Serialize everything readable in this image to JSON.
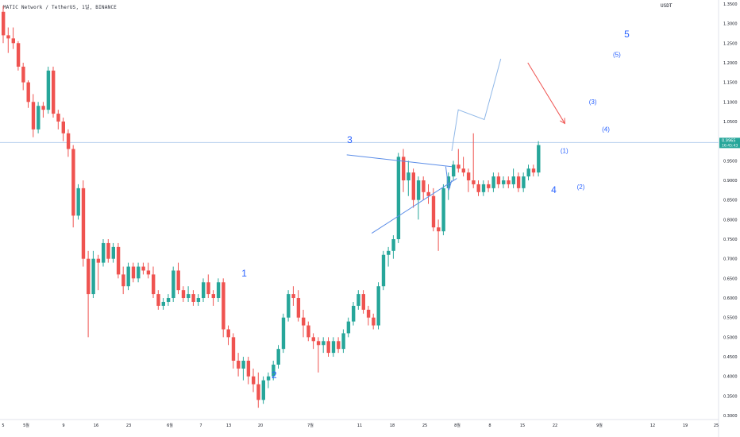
{
  "header": {
    "symbol": "MATIC Network / TetherUS, 1일, BINANCE",
    "currency": "USDT"
  },
  "colors": {
    "up": "#26a69a",
    "down": "#ef5350",
    "wave_line": "#5b8de8",
    "wave_text": "#2962ff",
    "projection_line": "#90b8e8",
    "arrow": "#ef5350",
    "price_tag": "#26a69a",
    "price_line": "#b7d0ee"
  },
  "chart_data": {
    "type": "candlestick",
    "y_axis_ticks": [
      "1.3500",
      "1.3000",
      "1.2500",
      "1.2000",
      "1.1500",
      "1.1000",
      "1.0500",
      "1.0000",
      "0.9500",
      "0.9000",
      "0.8500",
      "0.8000",
      "0.7500",
      "0.7000",
      "0.6500",
      "0.6000",
      "0.5500",
      "0.5000",
      "0.4500",
      "0.4000",
      "0.3500",
      "0.3000"
    ],
    "ylim": [
      0.29,
      1.36
    ],
    "x_axis_ticks": [
      "5",
      "5월",
      "9",
      "16",
      "23",
      "6월",
      "7",
      "13",
      "20",
      "7월",
      "11",
      "18",
      "25",
      "8월",
      "8",
      "15",
      "22",
      "9월",
      "12",
      "19",
      "25"
    ],
    "current_price": {
      "value": "0.9965",
      "countdown": "16:45:43"
    },
    "ohlc": [
      {
        "o": 1.33,
        "h": 1.345,
        "l": 1.25,
        "c": 1.27
      },
      {
        "o": 1.27,
        "h": 1.29,
        "l": 1.225,
        "c": 1.262
      },
      {
        "o": 1.262,
        "h": 1.29,
        "l": 1.235,
        "c": 1.25
      },
      {
        "o": 1.25,
        "h": 1.255,
        "l": 1.18,
        "c": 1.19
      },
      {
        "o": 1.19,
        "h": 1.2,
        "l": 1.13,
        "c": 1.15
      },
      {
        "o": 1.15,
        "h": 1.155,
        "l": 1.085,
        "c": 1.1
      },
      {
        "o": 1.1,
        "h": 1.12,
        "l": 1.01,
        "c": 1.03
      },
      {
        "o": 1.03,
        "h": 1.1,
        "l": 1.02,
        "c": 1.09
      },
      {
        "o": 1.09,
        "h": 1.1,
        "l": 1.06,
        "c": 1.08
      },
      {
        "o": 1.08,
        "h": 1.19,
        "l": 1.07,
        "c": 1.18
      },
      {
        "o": 1.18,
        "h": 1.19,
        "l": 1.06,
        "c": 1.07
      },
      {
        "o": 1.07,
        "h": 1.08,
        "l": 1.03,
        "c": 1.05
      },
      {
        "o": 1.05,
        "h": 1.06,
        "l": 1.0,
        "c": 1.02
      },
      {
        "o": 1.02,
        "h": 1.03,
        "l": 0.96,
        "c": 0.98
      },
      {
        "o": 0.98,
        "h": 0.99,
        "l": 0.78,
        "c": 0.81
      },
      {
        "o": 0.81,
        "h": 0.89,
        "l": 0.8,
        "c": 0.88
      },
      {
        "o": 0.88,
        "h": 0.9,
        "l": 0.68,
        "c": 0.7
      },
      {
        "o": 0.7,
        "h": 0.72,
        "l": 0.5,
        "c": 0.61
      },
      {
        "o": 0.61,
        "h": 0.72,
        "l": 0.6,
        "c": 0.7
      },
      {
        "o": 0.7,
        "h": 0.71,
        "l": 0.62,
        "c": 0.69
      },
      {
        "o": 0.69,
        "h": 0.75,
        "l": 0.68,
        "c": 0.74
      },
      {
        "o": 0.74,
        "h": 0.75,
        "l": 0.69,
        "c": 0.7
      },
      {
        "o": 0.7,
        "h": 0.74,
        "l": 0.69,
        "c": 0.73
      },
      {
        "o": 0.73,
        "h": 0.74,
        "l": 0.65,
        "c": 0.66
      },
      {
        "o": 0.66,
        "h": 0.68,
        "l": 0.61,
        "c": 0.63
      },
      {
        "o": 0.63,
        "h": 0.69,
        "l": 0.62,
        "c": 0.68
      },
      {
        "o": 0.68,
        "h": 0.69,
        "l": 0.64,
        "c": 0.65
      },
      {
        "o": 0.65,
        "h": 0.69,
        "l": 0.64,
        "c": 0.68
      },
      {
        "o": 0.68,
        "h": 0.69,
        "l": 0.66,
        "c": 0.67
      },
      {
        "o": 0.67,
        "h": 0.69,
        "l": 0.65,
        "c": 0.66
      },
      {
        "o": 0.66,
        "h": 0.68,
        "l": 0.6,
        "c": 0.61
      },
      {
        "o": 0.61,
        "h": 0.62,
        "l": 0.57,
        "c": 0.58
      },
      {
        "o": 0.58,
        "h": 0.6,
        "l": 0.57,
        "c": 0.59
      },
      {
        "o": 0.59,
        "h": 0.61,
        "l": 0.58,
        "c": 0.6
      },
      {
        "o": 0.6,
        "h": 0.68,
        "l": 0.59,
        "c": 0.67
      },
      {
        "o": 0.67,
        "h": 0.69,
        "l": 0.61,
        "c": 0.62
      },
      {
        "o": 0.62,
        "h": 0.63,
        "l": 0.59,
        "c": 0.6
      },
      {
        "o": 0.6,
        "h": 0.63,
        "l": 0.59,
        "c": 0.61
      },
      {
        "o": 0.61,
        "h": 0.62,
        "l": 0.58,
        "c": 0.59
      },
      {
        "o": 0.59,
        "h": 0.61,
        "l": 0.58,
        "c": 0.6
      },
      {
        "o": 0.6,
        "h": 0.65,
        "l": 0.59,
        "c": 0.64
      },
      {
        "o": 0.64,
        "h": 0.66,
        "l": 0.6,
        "c": 0.61
      },
      {
        "o": 0.61,
        "h": 0.62,
        "l": 0.58,
        "c": 0.6
      },
      {
        "o": 0.6,
        "h": 0.65,
        "l": 0.59,
        "c": 0.64
      },
      {
        "o": 0.64,
        "h": 0.65,
        "l": 0.5,
        "c": 0.52
      },
      {
        "o": 0.52,
        "h": 0.53,
        "l": 0.48,
        "c": 0.5
      },
      {
        "o": 0.5,
        "h": 0.51,
        "l": 0.42,
        "c": 0.44
      },
      {
        "o": 0.44,
        "h": 0.46,
        "l": 0.4,
        "c": 0.42
      },
      {
        "o": 0.42,
        "h": 0.45,
        "l": 0.39,
        "c": 0.44
      },
      {
        "o": 0.44,
        "h": 0.45,
        "l": 0.38,
        "c": 0.4
      },
      {
        "o": 0.4,
        "h": 0.42,
        "l": 0.36,
        "c": 0.38
      },
      {
        "o": 0.38,
        "h": 0.41,
        "l": 0.32,
        "c": 0.34
      },
      {
        "o": 0.34,
        "h": 0.4,
        "l": 0.33,
        "c": 0.39
      },
      {
        "o": 0.39,
        "h": 0.41,
        "l": 0.37,
        "c": 0.4
      },
      {
        "o": 0.4,
        "h": 0.44,
        "l": 0.39,
        "c": 0.43
      },
      {
        "o": 0.43,
        "h": 0.48,
        "l": 0.42,
        "c": 0.47
      },
      {
        "o": 0.47,
        "h": 0.56,
        "l": 0.46,
        "c": 0.55
      },
      {
        "o": 0.55,
        "h": 0.62,
        "l": 0.54,
        "c": 0.61
      },
      {
        "o": 0.61,
        "h": 0.63,
        "l": 0.58,
        "c": 0.6
      },
      {
        "o": 0.6,
        "h": 0.62,
        "l": 0.54,
        "c": 0.55
      },
      {
        "o": 0.55,
        "h": 0.57,
        "l": 0.5,
        "c": 0.53
      },
      {
        "o": 0.53,
        "h": 0.54,
        "l": 0.49,
        "c": 0.5
      },
      {
        "o": 0.5,
        "h": 0.51,
        "l": 0.47,
        "c": 0.49
      },
      {
        "o": 0.49,
        "h": 0.5,
        "l": 0.41,
        "c": 0.48
      },
      {
        "o": 0.48,
        "h": 0.5,
        "l": 0.46,
        "c": 0.49
      },
      {
        "o": 0.49,
        "h": 0.5,
        "l": 0.45,
        "c": 0.46
      },
      {
        "o": 0.46,
        "h": 0.5,
        "l": 0.45,
        "c": 0.49
      },
      {
        "o": 0.49,
        "h": 0.5,
        "l": 0.46,
        "c": 0.47
      },
      {
        "o": 0.47,
        "h": 0.52,
        "l": 0.46,
        "c": 0.51
      },
      {
        "o": 0.51,
        "h": 0.55,
        "l": 0.5,
        "c": 0.54
      },
      {
        "o": 0.54,
        "h": 0.59,
        "l": 0.53,
        "c": 0.58
      },
      {
        "o": 0.58,
        "h": 0.62,
        "l": 0.57,
        "c": 0.61
      },
      {
        "o": 0.61,
        "h": 0.62,
        "l": 0.56,
        "c": 0.57
      },
      {
        "o": 0.57,
        "h": 0.58,
        "l": 0.53,
        "c": 0.55
      },
      {
        "o": 0.55,
        "h": 0.56,
        "l": 0.52,
        "c": 0.53
      },
      {
        "o": 0.53,
        "h": 0.64,
        "l": 0.52,
        "c": 0.63
      },
      {
        "o": 0.63,
        "h": 0.72,
        "l": 0.62,
        "c": 0.71
      },
      {
        "o": 0.71,
        "h": 0.73,
        "l": 0.68,
        "c": 0.72
      },
      {
        "o": 0.72,
        "h": 0.76,
        "l": 0.7,
        "c": 0.75
      },
      {
        "o": 0.75,
        "h": 0.97,
        "l": 0.74,
        "c": 0.96
      },
      {
        "o": 0.96,
        "h": 0.98,
        "l": 0.87,
        "c": 0.9
      },
      {
        "o": 0.9,
        "h": 0.95,
        "l": 0.86,
        "c": 0.92
      },
      {
        "o": 0.92,
        "h": 0.93,
        "l": 0.83,
        "c": 0.85
      },
      {
        "o": 0.85,
        "h": 0.91,
        "l": 0.8,
        "c": 0.9
      },
      {
        "o": 0.9,
        "h": 0.91,
        "l": 0.85,
        "c": 0.87
      },
      {
        "o": 0.87,
        "h": 0.89,
        "l": 0.84,
        "c": 0.86
      },
      {
        "o": 0.86,
        "h": 0.88,
        "l": 0.77,
        "c": 0.78
      },
      {
        "o": 0.78,
        "h": 0.8,
        "l": 0.72,
        "c": 0.77
      },
      {
        "o": 0.77,
        "h": 0.89,
        "l": 0.76,
        "c": 0.88
      },
      {
        "o": 0.88,
        "h": 0.92,
        "l": 0.85,
        "c": 0.91
      },
      {
        "o": 0.91,
        "h": 0.95,
        "l": 0.9,
        "c": 0.94
      },
      {
        "o": 0.94,
        "h": 0.98,
        "l": 0.92,
        "c": 0.93
      },
      {
        "o": 0.93,
        "h": 0.96,
        "l": 0.91,
        "c": 0.92
      },
      {
        "o": 0.92,
        "h": 0.93,
        "l": 0.87,
        "c": 0.9
      },
      {
        "o": 0.9,
        "h": 1.02,
        "l": 0.88,
        "c": 0.89
      },
      {
        "o": 0.89,
        "h": 0.9,
        "l": 0.86,
        "c": 0.87
      },
      {
        "o": 0.87,
        "h": 0.9,
        "l": 0.86,
        "c": 0.89
      },
      {
        "o": 0.89,
        "h": 0.9,
        "l": 0.87,
        "c": 0.88
      },
      {
        "o": 0.88,
        "h": 0.92,
        "l": 0.87,
        "c": 0.91
      },
      {
        "o": 0.91,
        "h": 0.92,
        "l": 0.88,
        "c": 0.89
      },
      {
        "o": 0.89,
        "h": 0.91,
        "l": 0.88,
        "c": 0.9
      },
      {
        "o": 0.9,
        "h": 0.91,
        "l": 0.88,
        "c": 0.89
      },
      {
        "o": 0.89,
        "h": 0.93,
        "l": 0.88,
        "c": 0.91
      },
      {
        "o": 0.91,
        "h": 0.92,
        "l": 0.87,
        "c": 0.88
      },
      {
        "o": 0.88,
        "h": 0.92,
        "l": 0.87,
        "c": 0.91
      },
      {
        "o": 0.91,
        "h": 0.94,
        "l": 0.9,
        "c": 0.93
      },
      {
        "o": 0.93,
        "h": 0.94,
        "l": 0.91,
        "c": 0.92
      },
      {
        "o": 0.92,
        "h": 1.0,
        "l": 0.91,
        "c": 0.99
      }
    ],
    "wave_labels": [
      {
        "text": "1",
        "i": 48.5,
        "p": 0.655,
        "big": true
      },
      {
        "text": "2",
        "i": 54.5,
        "p": 0.395,
        "big": true
      },
      {
        "text": "3",
        "i": 69.6,
        "p": 0.995,
        "big": true
      },
      {
        "text": "4",
        "i": 110.4,
        "p": 0.868,
        "big": true
      },
      {
        "text": "5",
        "i": 125.0,
        "p": 1.265,
        "big": true
      },
      {
        "text": "(1)",
        "i": 112.5,
        "p": 0.97,
        "big": false
      },
      {
        "text": "(2)",
        "i": 115.8,
        "p": 0.878,
        "big": false
      },
      {
        "text": "(3)",
        "i": 118.2,
        "p": 1.095,
        "big": false
      },
      {
        "text": "(4)",
        "i": 120.8,
        "p": 1.025,
        "big": false
      },
      {
        "text": "(5)",
        "i": 123.0,
        "p": 1.215,
        "big": false
      }
    ],
    "triangle_upper": [
      {
        "i": 69,
        "p": 0.965
      },
      {
        "i": 90,
        "p": 0.935
      }
    ],
    "triangle_lower": [
      {
        "i": 74,
        "p": 0.765
      },
      {
        "i": 91,
        "p": 0.905
      }
    ],
    "projection": [
      {
        "i": 90,
        "p": 0.975
      },
      {
        "i": 91.3,
        "p": 1.08
      },
      {
        "i": 96.5,
        "p": 1.055
      },
      {
        "i": 99.8,
        "p": 1.21
      }
    ],
    "arrow": {
      "from": {
        "i": 105.2,
        "p": 1.2
      },
      "to": {
        "i": 112.6,
        "p": 1.045
      }
    }
  }
}
